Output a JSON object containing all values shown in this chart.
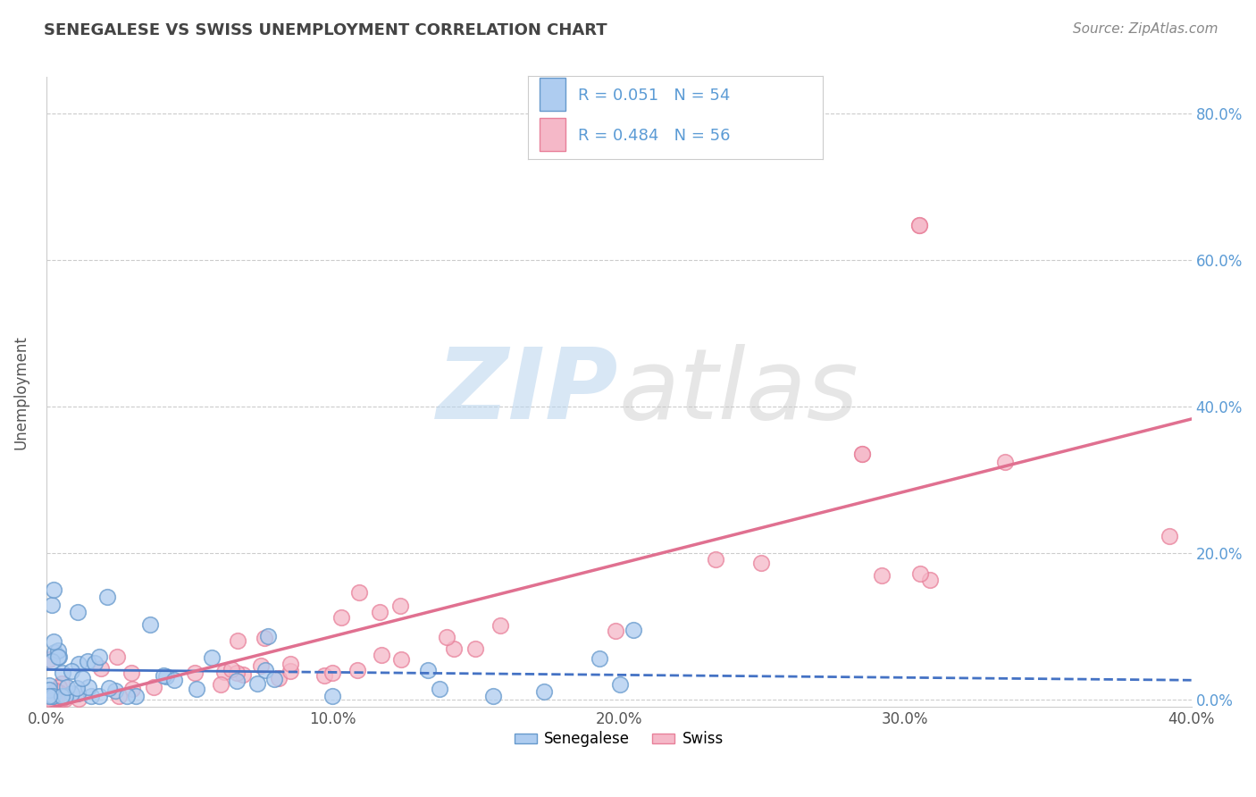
{
  "title": "SENEGALESE VS SWISS UNEMPLOYMENT CORRELATION CHART",
  "source": "Source: ZipAtlas.com",
  "ylabel": "Unemployment",
  "xlim": [
    0.0,
    0.4
  ],
  "ylim": [
    -0.01,
    0.85
  ],
  "yticks": [
    0.0,
    0.2,
    0.4,
    0.6,
    0.8
  ],
  "xticks": [
    0.0,
    0.1,
    0.2,
    0.3,
    0.4
  ],
  "background_color": "#ffffff",
  "grid_color": "#cccccc",
  "senegalese_face_color": "#aeccf0",
  "senegalese_edge_color": "#6699cc",
  "swiss_face_color": "#f5b8c8",
  "swiss_edge_color": "#e8809a",
  "senegalese_line_color": "#4472c4",
  "swiss_line_color": "#e07090",
  "text_color": "#5b9bd5",
  "legend_R_senegalese": "0.051",
  "legend_N_senegalese": "54",
  "legend_R_swiss": "0.484",
  "legend_N_swiss": "56",
  "watermark_zip_color": "#b8d4ee",
  "watermark_atlas_color": "#c8c8c8"
}
